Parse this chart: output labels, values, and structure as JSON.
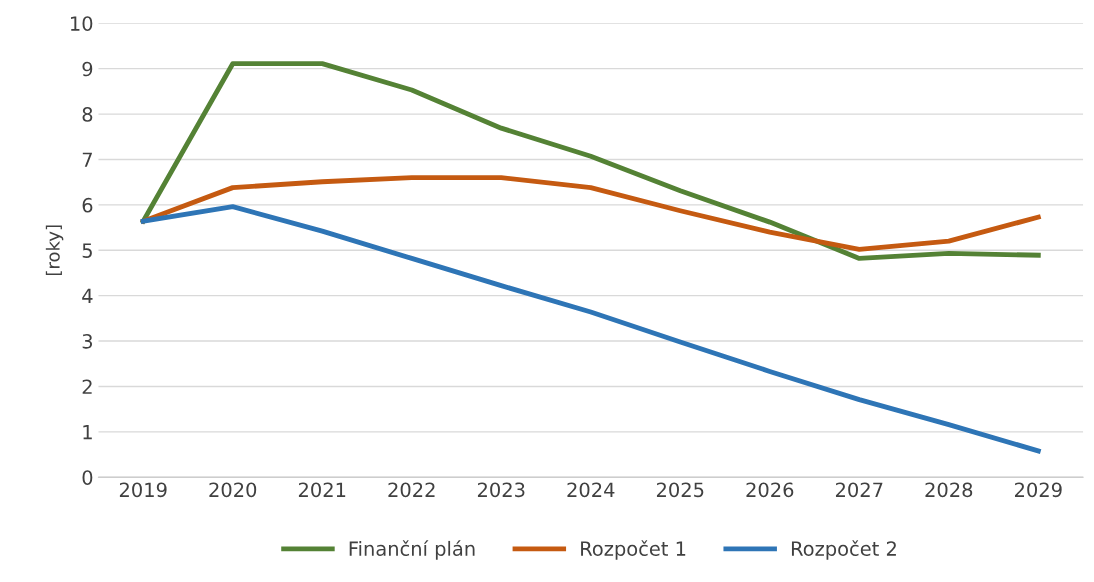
{
  "chart_data": {
    "type": "line",
    "ylabel": "[roky]",
    "categories": [
      "2019",
      "2020",
      "2021",
      "2022",
      "2023",
      "2024",
      "2025",
      "2026",
      "2027",
      "2028",
      "2029"
    ],
    "series": [
      {
        "name": "Finanční plán",
        "color": "#548235",
        "values": [
          5.64,
          9.11,
          9.11,
          8.53,
          7.69,
          7.07,
          6.31,
          5.62,
          4.82,
          4.93,
          4.89
        ]
      },
      {
        "name": "Rozpočet 1",
        "color": "#c55a11",
        "values": [
          5.64,
          6.38,
          6.51,
          6.6,
          6.6,
          6.38,
          5.87,
          5.4,
          5.02,
          5.2,
          5.73
        ]
      },
      {
        "name": "Rozpočet 2",
        "color": "#2e75b6",
        "values": [
          5.64,
          5.96,
          5.42,
          4.82,
          4.22,
          3.64,
          2.98,
          2.33,
          1.71,
          1.16,
          0.58
        ]
      }
    ],
    "ylim": [
      0,
      10
    ],
    "yticks": [
      0,
      1,
      2,
      3,
      4,
      5,
      6,
      7,
      8,
      9,
      10
    ],
    "grid": "y",
    "legend": "bottom",
    "marker": "none",
    "line_style": "solid"
  }
}
